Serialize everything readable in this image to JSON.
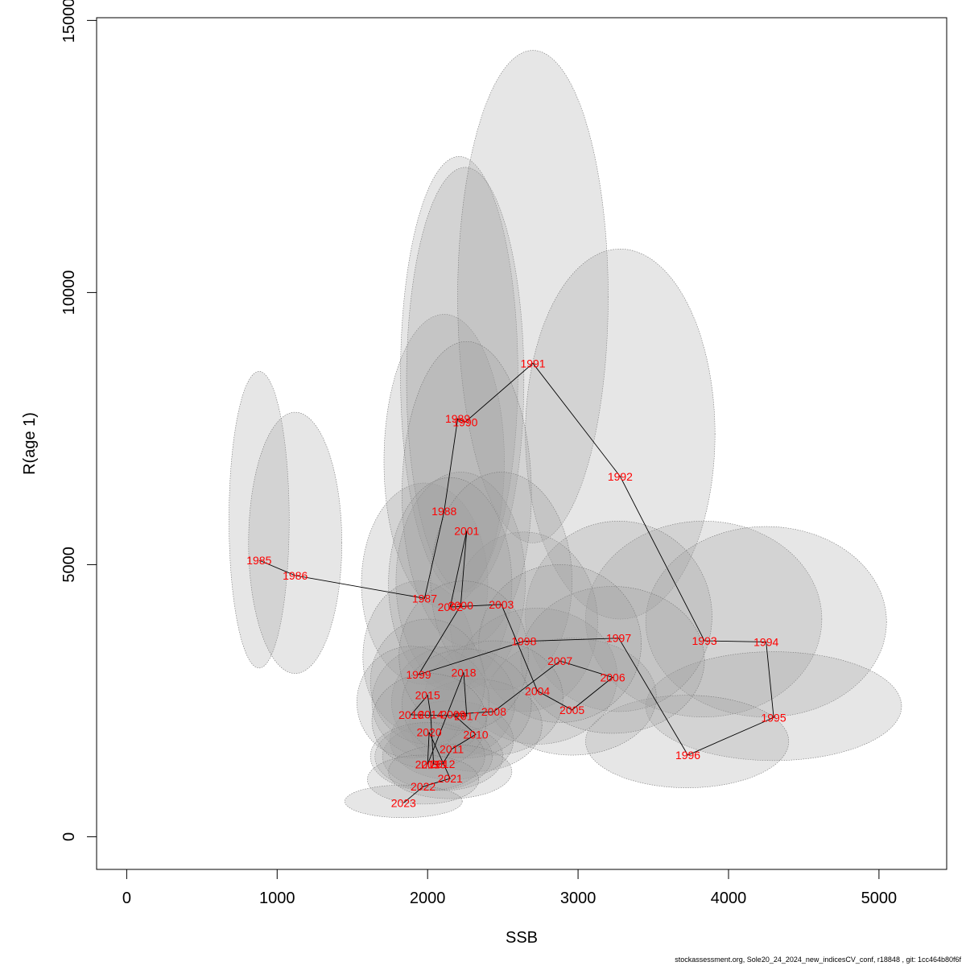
{
  "chart_data": {
    "type": "scatter",
    "title": "",
    "xlabel": "SSB",
    "ylabel": "R(age 1)",
    "xlim": [
      -200,
      5450
    ],
    "ylim": [
      -600,
      15050
    ],
    "xticks": [
      0,
      1000,
      2000,
      3000,
      4000,
      5000
    ],
    "yticks": [
      0,
      5000,
      10000,
      15000
    ],
    "grid": false,
    "connected": true,
    "colors": {
      "point_label": "#ff0000",
      "path": "#000000",
      "ellipse_fill": "#9e9e9e",
      "ellipse_stroke": "#777777",
      "frame": "#000000"
    },
    "points": [
      {
        "year": "1985",
        "ssb": 880,
        "r": 5080,
        "ssb_lo": 680,
        "ssb_hi": 1080,
        "r_lo": 3100,
        "r_hi": 8550
      },
      {
        "year": "1986",
        "ssb": 1120,
        "r": 4800,
        "ssb_lo": 810,
        "ssb_hi": 1430,
        "r_lo": 3000,
        "r_hi": 7800
      },
      {
        "year": "1987",
        "ssb": 1980,
        "r": 4380,
        "ssb_lo": 1560,
        "ssb_hi": 2400,
        "r_lo": 2800,
        "r_hi": 6500
      },
      {
        "year": "1988",
        "ssb": 2110,
        "r": 5980,
        "ssb_lo": 1710,
        "ssb_hi": 2510,
        "r_lo": 4200,
        "r_hi": 9600
      },
      {
        "year": "1989",
        "ssb": 2200,
        "r": 7680,
        "ssb_lo": 1820,
        "ssb_hi": 2600,
        "r_lo": 4500,
        "r_hi": 12500
      },
      {
        "year": "1990",
        "ssb": 2250,
        "r": 7620,
        "ssb_lo": 1860,
        "ssb_hi": 2640,
        "r_lo": 4500,
        "r_hi": 12300
      },
      {
        "year": "1991",
        "ssb": 2700,
        "r": 8700,
        "ssb_lo": 2200,
        "ssb_hi": 3200,
        "r_lo": 5400,
        "r_hi": 14450
      },
      {
        "year": "1992",
        "ssb": 3280,
        "r": 6620,
        "ssb_lo": 2650,
        "ssb_hi": 3910,
        "r_lo": 4000,
        "r_hi": 10800
      },
      {
        "year": "1993",
        "ssb": 3840,
        "r": 3600,
        "ssb_lo": 3050,
        "ssb_hi": 4620,
        "r_lo": 2200,
        "r_hi": 5800
      },
      {
        "year": "1994",
        "ssb": 4250,
        "r": 3580,
        "ssb_lo": 3450,
        "ssb_hi": 5050,
        "r_lo": 2200,
        "r_hi": 5700
      },
      {
        "year": "1995",
        "ssb": 4300,
        "r": 2190,
        "ssb_lo": 3450,
        "ssb_hi": 5150,
        "r_lo": 1400,
        "r_hi": 3400
      },
      {
        "year": "1996",
        "ssb": 3730,
        "r": 1500,
        "ssb_lo": 3050,
        "ssb_hi": 4400,
        "r_lo": 900,
        "r_hi": 2600
      },
      {
        "year": "1997",
        "ssb": 3270,
        "r": 3650,
        "ssb_lo": 2650,
        "ssb_hi": 3890,
        "r_lo": 2300,
        "r_hi": 5800
      },
      {
        "year": "1998",
        "ssb": 2640,
        "r": 3590,
        "ssb_lo": 2150,
        "ssb_hi": 3130,
        "r_lo": 2300,
        "r_hi": 5600
      },
      {
        "year": "1999",
        "ssb": 1940,
        "r": 2980,
        "ssb_lo": 1570,
        "ssb_hi": 2310,
        "r_lo": 1900,
        "r_hi": 4700
      },
      {
        "year": "2000",
        "ssb": 2220,
        "r": 4250,
        "ssb_lo": 1790,
        "ssb_hi": 2650,
        "r_lo": 2700,
        "r_hi": 6700
      },
      {
        "year": "2001",
        "ssb": 2260,
        "r": 5620,
        "ssb_lo": 1830,
        "ssb_hi": 2690,
        "r_lo": 3500,
        "r_hi": 9100
      },
      {
        "year": "2002",
        "ssb": 2150,
        "r": 4220,
        "ssb_lo": 1740,
        "ssb_hi": 2560,
        "r_lo": 2700,
        "r_hi": 6600
      },
      {
        "year": "2003",
        "ssb": 2490,
        "r": 4270,
        "ssb_lo": 2020,
        "ssb_hi": 2960,
        "r_lo": 2700,
        "r_hi": 6700
      },
      {
        "year": "2004",
        "ssb": 2730,
        "r": 2680,
        "ssb_lo": 2200,
        "ssb_hi": 3260,
        "r_lo": 1700,
        "r_hi": 4200
      },
      {
        "year": "2005",
        "ssb": 2960,
        "r": 2330,
        "ssb_lo": 2400,
        "ssb_hi": 3520,
        "r_lo": 1500,
        "r_hi": 3650
      },
      {
        "year": "2006",
        "ssb": 3230,
        "r": 2930,
        "ssb_lo": 2620,
        "ssb_hi": 3840,
        "r_lo": 1900,
        "r_hi": 4600
      },
      {
        "year": "2007",
        "ssb": 2880,
        "r": 3230,
        "ssb_lo": 2340,
        "ssb_hi": 3420,
        "r_lo": 2100,
        "r_hi": 5000
      },
      {
        "year": "2008",
        "ssb": 2440,
        "r": 2300,
        "ssb_lo": 1980,
        "ssb_hi": 2900,
        "r_lo": 1500,
        "r_hi": 3600
      },
      {
        "year": "2009",
        "ssb": 2170,
        "r": 2250,
        "ssb_lo": 1760,
        "ssb_hi": 2580,
        "r_lo": 1450,
        "r_hi": 3500
      },
      {
        "year": "2010",
        "ssb": 2320,
        "r": 1880,
        "ssb_lo": 1880,
        "ssb_hi": 2760,
        "r_lo": 1200,
        "r_hi": 2900
      },
      {
        "year": "2011",
        "ssb": 2160,
        "r": 1610,
        "ssb_lo": 1750,
        "ssb_hi": 2570,
        "r_lo": 1050,
        "r_hi": 2500
      },
      {
        "year": "2012",
        "ssb": 2100,
        "r": 1340,
        "ssb_lo": 1700,
        "ssb_hi": 2500,
        "r_lo": 850,
        "r_hi": 2100
      },
      {
        "year": "2013",
        "ssb": 2040,
        "r": 1330,
        "ssb_lo": 1650,
        "ssb_hi": 2430,
        "r_lo": 850,
        "r_hi": 2100
      },
      {
        "year": "2014",
        "ssb": 2020,
        "r": 2250,
        "ssb_lo": 1630,
        "ssb_hi": 2410,
        "r_lo": 1450,
        "r_hi": 3500
      },
      {
        "year": "2015",
        "ssb": 2000,
        "r": 2600,
        "ssb_lo": 1620,
        "ssb_hi": 2380,
        "r_lo": 1700,
        "r_hi": 4000
      },
      {
        "year": "2016",
        "ssb": 1890,
        "r": 2240,
        "ssb_lo": 1530,
        "ssb_hi": 2250,
        "r_lo": 1450,
        "r_hi": 3500
      },
      {
        "year": "2017",
        "ssb": 2260,
        "r": 2220,
        "ssb_lo": 1830,
        "ssb_hi": 2690,
        "r_lo": 1450,
        "r_hi": 3450
      },
      {
        "year": "2018",
        "ssb": 2240,
        "r": 3020,
        "ssb_lo": 1810,
        "ssb_hi": 2670,
        "r_lo": 1950,
        "r_hi": 4700
      },
      {
        "year": "2019",
        "ssb": 2000,
        "r": 1330,
        "ssb_lo": 1620,
        "ssb_hi": 2380,
        "r_lo": 850,
        "r_hi": 2100
      },
      {
        "year": "2020",
        "ssb": 2010,
        "r": 1920,
        "ssb_lo": 1630,
        "ssb_hi": 2390,
        "r_lo": 1250,
        "r_hi": 3000
      },
      {
        "year": "2021",
        "ssb": 2150,
        "r": 1070,
        "ssb_lo": 1740,
        "ssb_hi": 2560,
        "r_lo": 700,
        "r_hi": 1700
      },
      {
        "year": "2022",
        "ssb": 1970,
        "r": 920,
        "ssb_lo": 1600,
        "ssb_hi": 2340,
        "r_lo": 600,
        "r_hi": 1500
      },
      {
        "year": "2023",
        "ssb": 1840,
        "r": 620,
        "ssb_lo": 1450,
        "ssb_hi": 2230,
        "r_lo": 350,
        "r_hi": 950
      }
    ]
  },
  "footer": {
    "text": "stockassessment.org, Sole20_24_2024_new_indicesCV_conf, r18848 , git: 1cc464b80f6f"
  }
}
